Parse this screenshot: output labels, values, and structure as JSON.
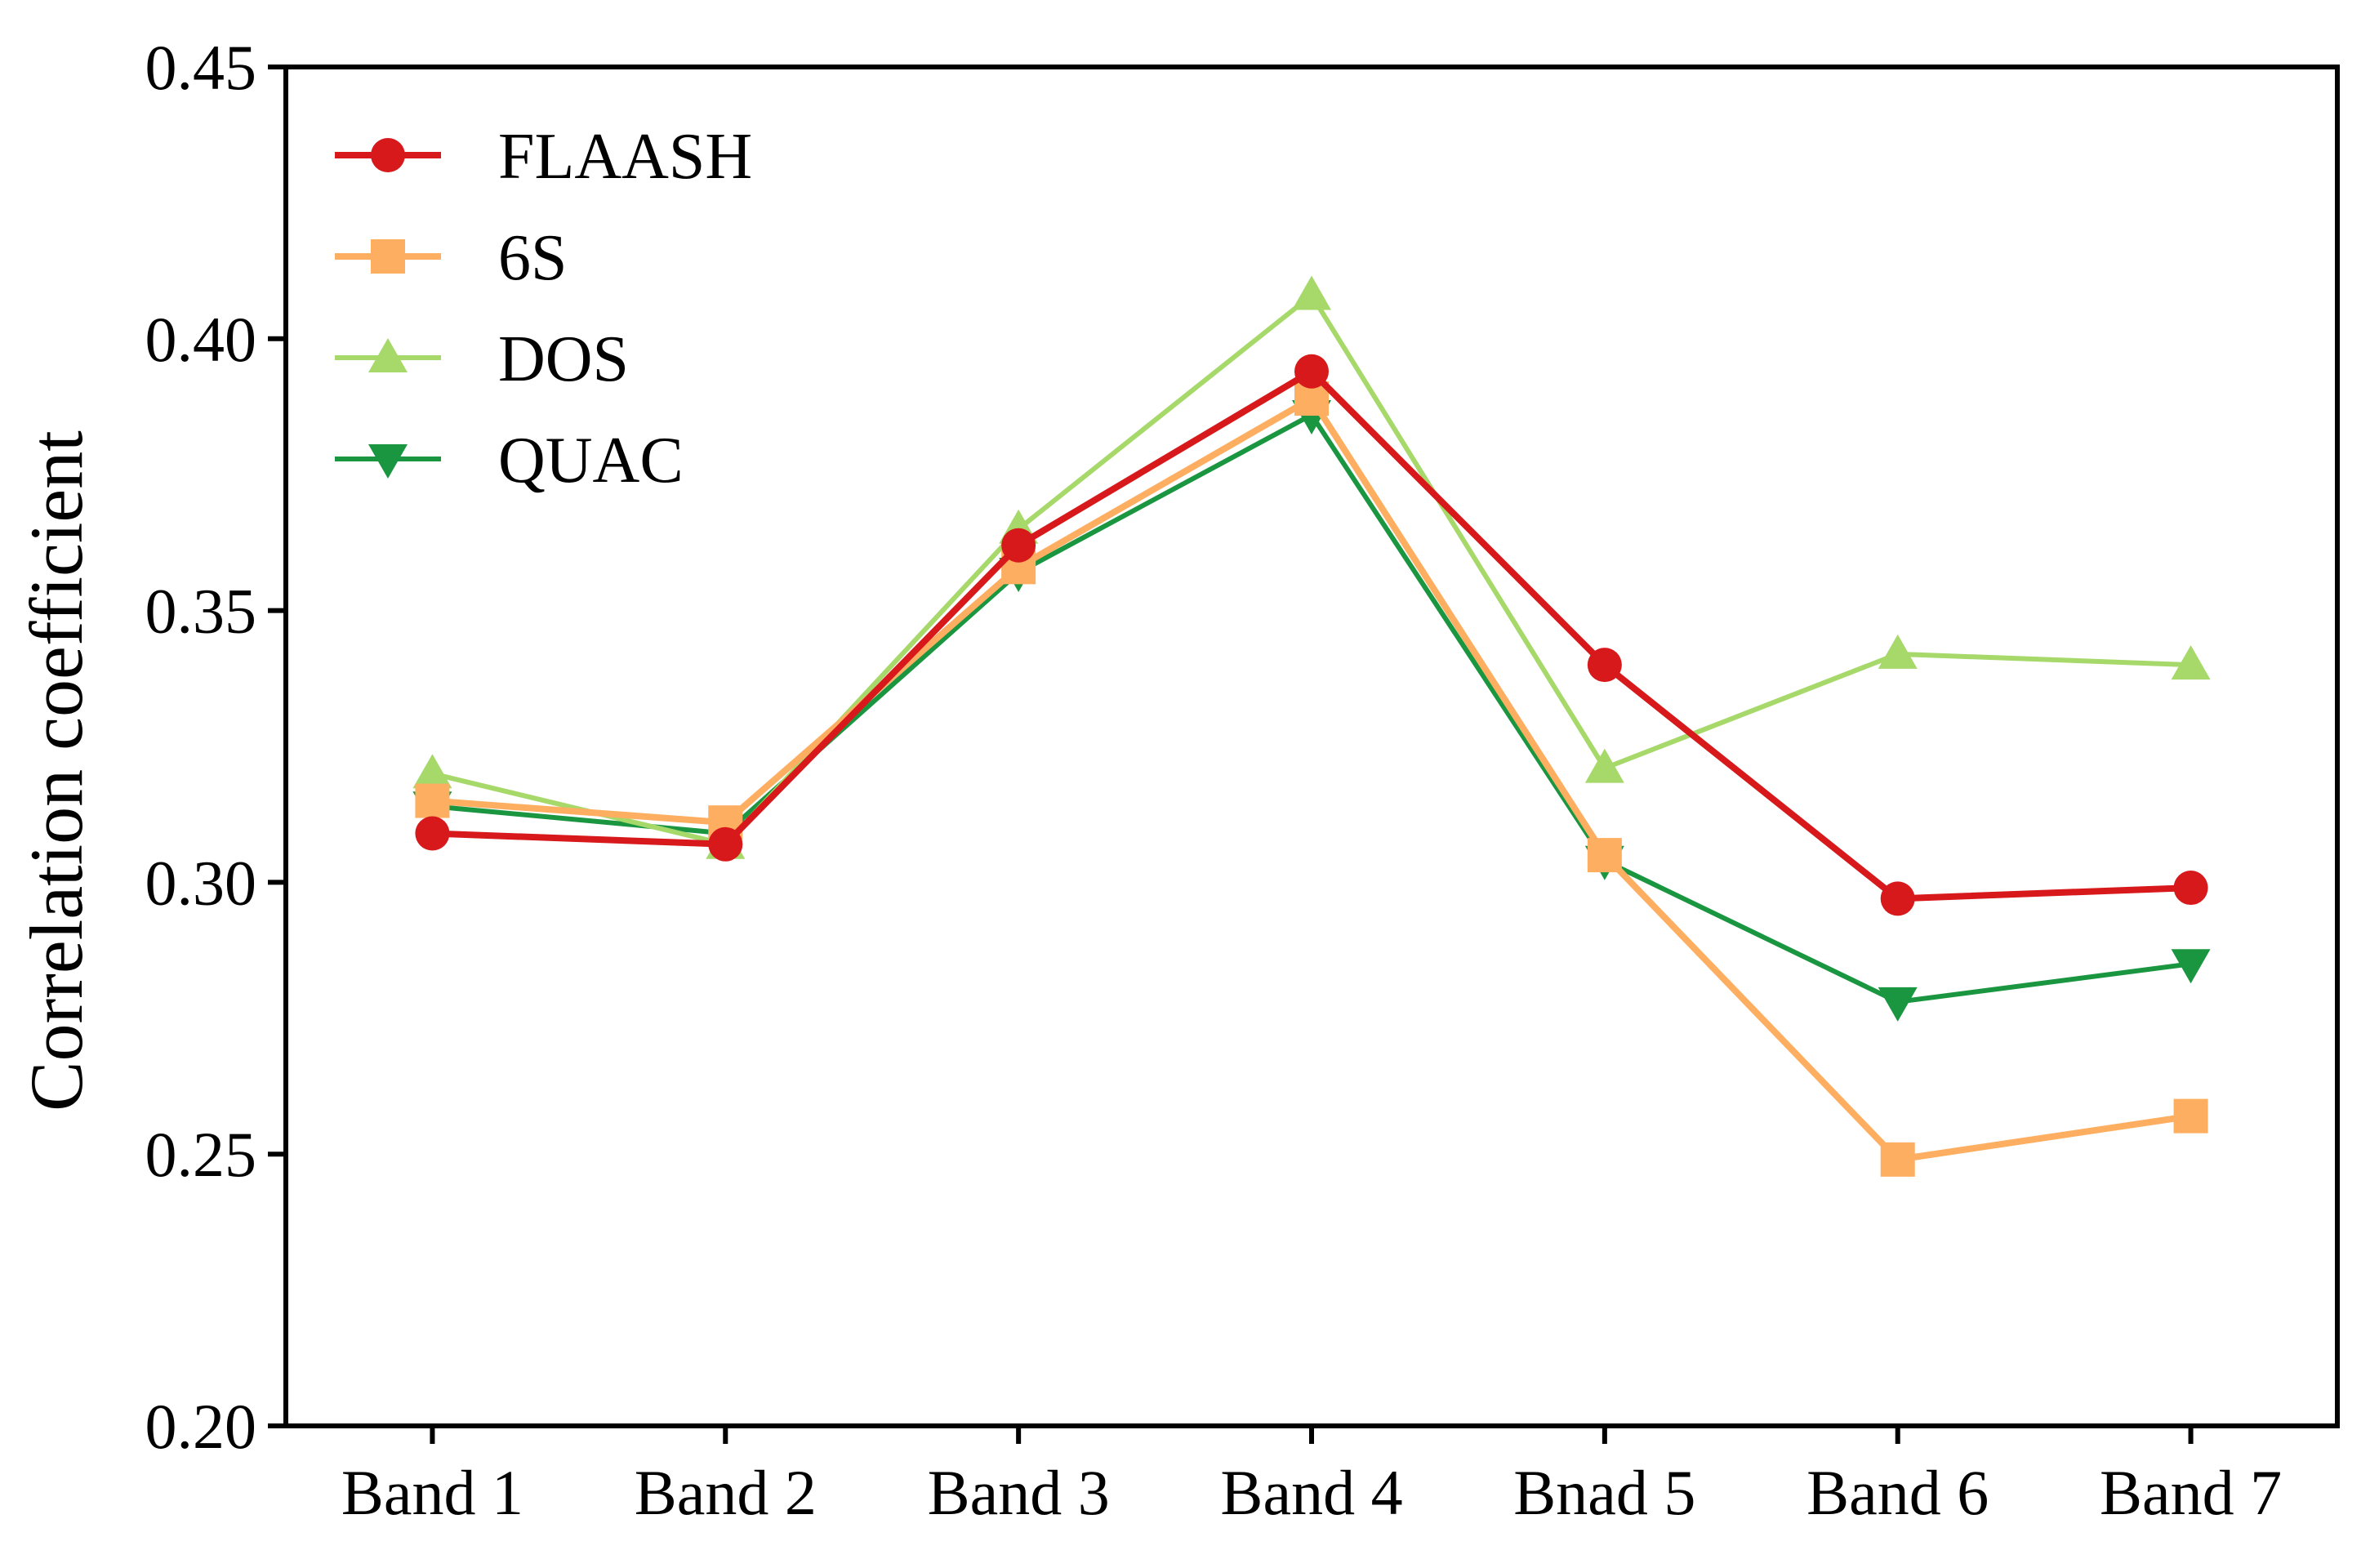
{
  "chart_data": {
    "type": "line",
    "title": "",
    "xlabel": "",
    "ylabel": "Correlation coefficient",
    "categories": [
      "Band 1",
      "Band 2",
      "Band 3",
      "Band 4",
      "Bnad 5",
      "Band 6",
      "Band 7"
    ],
    "ylim": [
      0.2,
      0.45
    ],
    "yticks": [
      "0.20",
      "0.25",
      "0.30",
      "0.35",
      "0.40",
      "0.45"
    ],
    "grid": false,
    "legend_position": "top-left",
    "series": [
      {
        "name": "FLAASH",
        "color": "#d7191c",
        "marker": "circle",
        "values": [
          0.309,
          0.307,
          0.362,
          0.394,
          0.34,
          0.297,
          0.299
        ]
      },
      {
        "name": "6S",
        "color": "#fdae61",
        "marker": "square",
        "values": [
          0.315,
          0.311,
          0.358,
          0.389,
          0.305,
          0.249,
          0.257
        ]
      },
      {
        "name": "DOS",
        "color": "#a6d96a",
        "marker": "triangle-up",
        "values": [
          0.32,
          0.307,
          0.365,
          0.408,
          0.321,
          0.342,
          0.34
        ]
      },
      {
        "name": "QUAC",
        "color": "#1a9641",
        "marker": "triangle-down",
        "values": [
          0.314,
          0.309,
          0.357,
          0.386,
          0.304,
          0.278,
          0.285
        ]
      }
    ]
  }
}
